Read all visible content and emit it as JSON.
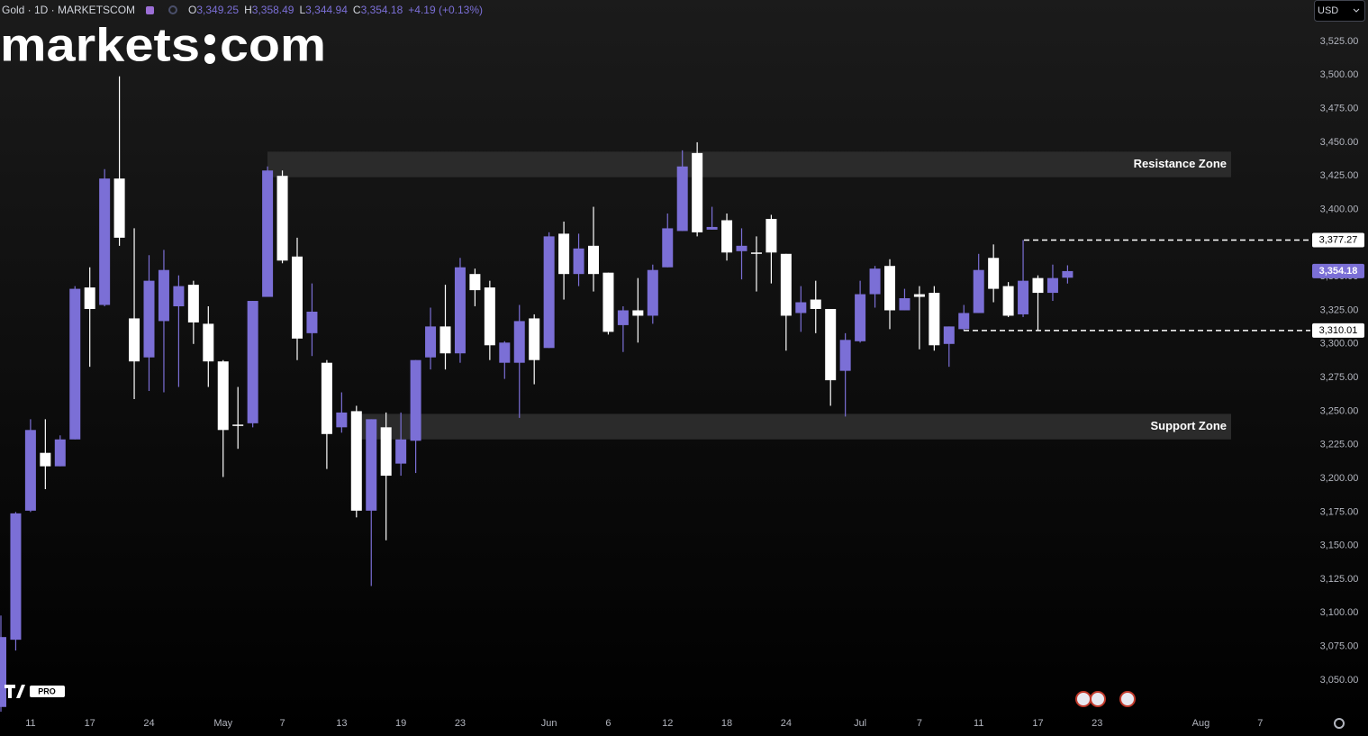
{
  "header": {
    "symbol": "Gold · 1D · MARKETSCOM",
    "ohlc": [
      {
        "label": "O",
        "value": "3,349.25"
      },
      {
        "label": "H",
        "value": "3,358.49"
      },
      {
        "label": "L",
        "value": "3,344.94"
      },
      {
        "label": "C",
        "value": "3,354.18"
      }
    ],
    "change": "+4.19 (+0.13%)",
    "currency": "USD"
  },
  "logo": {
    "left": "markets",
    "right": "com"
  },
  "badge": "PRO",
  "chart_data": {
    "type": "candlestick",
    "categories": [
      null,
      null,
      "11",
      null,
      null,
      null,
      "17",
      null,
      null,
      null,
      "24",
      null,
      null,
      null,
      null,
      "May",
      null,
      null,
      null,
      "7",
      null,
      null,
      null,
      "13",
      null,
      null,
      null,
      "19",
      null,
      null,
      null,
      "23",
      null,
      null,
      null,
      null,
      null,
      "Jun",
      null,
      null,
      null,
      "6",
      null,
      null,
      null,
      "12",
      null,
      null,
      null,
      "18",
      null,
      null,
      null,
      "24",
      null,
      null,
      null,
      null,
      "Jul",
      null,
      null,
      null,
      "7",
      null,
      null,
      null,
      "11",
      null,
      null,
      null,
      "17",
      null,
      null,
      null,
      "23",
      null,
      null,
      null,
      null,
      null,
      null,
      "Aug",
      null,
      null,
      null,
      "7"
    ],
    "open": [
      3030,
      3080,
      3176,
      3219,
      3209,
      3229,
      3342,
      3329,
      3423,
      3319,
      3290,
      3317,
      3328,
      3344,
      3315,
      3287,
      3240,
      3241,
      3335,
      3425,
      3365,
      3308,
      3286,
      3238,
      3250,
      3176,
      3238,
      3211,
      3228,
      3290,
      3313,
      3293,
      3352,
      3342,
      3286,
      3286,
      3319,
      3297,
      3382,
      3352,
      3373,
      3353,
      3314,
      3325,
      3321,
      3357,
      3384,
      3442,
      3385,
      3392,
      3369,
      3368,
      3393,
      3367,
      3323,
      3333,
      3326,
      3280,
      3302,
      3337,
      3358,
      3325,
      3337,
      3338,
      3300,
      3311,
      3323,
      3364,
      3343,
      3322,
      3349,
      3338,
      3349.25,
      null,
      null,
      null,
      null,
      null,
      null,
      null,
      null,
      null,
      null,
      null,
      null,
      null
    ],
    "high": [
      3098,
      3175,
      3244,
      3244,
      3232,
      3343,
      3357,
      3430,
      3499,
      3386,
      3366,
      3370,
      3351,
      3347,
      3328,
      3288,
      3268,
      3332,
      3432,
      3429,
      3379,
      3345,
      3288,
      3264,
      3254,
      3244,
      3249,
      3249,
      3288,
      3327,
      3344,
      3364,
      3356,
      3347,
      3302,
      3329,
      3322,
      3383,
      3391,
      3382,
      3402,
      3353,
      3328,
      3349,
      3359,
      3397,
      3444,
      3450,
      3402,
      3397,
      3386,
      3380,
      3396,
      3367,
      3343,
      3347,
      3326,
      3308,
      3347,
      3358,
      3363,
      3341,
      3343,
      3343,
      3313,
      3329,
      3367,
      3374,
      3346,
      3377.27,
      3351,
      3359,
      3358.49,
      null,
      null,
      null,
      null,
      null,
      null,
      null,
      null,
      null,
      null,
      null,
      null,
      null
    ],
    "low": [
      3025,
      3072,
      3175,
      3192,
      3209,
      3229,
      3283,
      3328,
      3373,
      3259,
      3265,
      3264,
      3268,
      3300,
      3268,
      3201,
      3222,
      3238,
      3335,
      3360,
      3288,
      3291,
      3207,
      3234,
      3171,
      3120,
      3154,
      3202,
      3204,
      3281,
      3281,
      3286,
      3328,
      3288,
      3274,
      3245,
      3270,
      3297,
      3333,
      3343,
      3339,
      3307,
      3294,
      3301,
      3315,
      3357,
      3384,
      3380,
      3385,
      3362,
      3348,
      3339,
      3345,
      3295,
      3309,
      3308,
      3254,
      3246,
      3301,
      3327,
      3311,
      3325,
      3296,
      3295,
      3283,
      3310.01,
      3323,
      3331,
      3320,
      3320,
      3310,
      3332,
      3344.94,
      null,
      null,
      null,
      null,
      null,
      null,
      null,
      null,
      null,
      null,
      null,
      null,
      null
    ],
    "close": [
      3082,
      3174,
      3236,
      3209,
      3229,
      3341,
      3326,
      3423,
      3379,
      3287,
      3347,
      3355,
      3343,
      3316,
      3287,
      3236,
      3239,
      3332,
      3429,
      3362,
      3304,
      3324,
      3233,
      3249,
      3176,
      3244,
      3202,
      3229,
      3288,
      3313,
      3293,
      3357,
      3340,
      3299,
      3301,
      3317,
      3288,
      3380,
      3352,
      3371,
      3352,
      3309,
      3325,
      3321,
      3355,
      3386,
      3432,
      3383,
      3387,
      3368,
      3373,
      3367,
      3368,
      3321,
      3331,
      3326,
      3273,
      3303,
      3337,
      3356,
      3325,
      3334,
      3335,
      3299,
      3313,
      3323,
      3355,
      3341,
      3321,
      3347,
      3338,
      3349,
      3354.18,
      null,
      null,
      null,
      null,
      null,
      null,
      null,
      null,
      null,
      null,
      null,
      null,
      null
    ],
    "up_color": "#7b6fd6",
    "down_color": "#ffffff",
    "ylim": [
      3026.5,
      3555.8
    ],
    "yticks": [
      {
        "value": 3050,
        "label": "3,050.00"
      },
      {
        "value": 3075,
        "label": "3,075.00"
      },
      {
        "value": 3100,
        "label": "3,100.00"
      },
      {
        "value": 3125,
        "label": "3,125.00"
      },
      {
        "value": 3150,
        "label": "3,150.00"
      },
      {
        "value": 3175,
        "label": "3,175.00"
      },
      {
        "value": 3200,
        "label": "3,200.00"
      },
      {
        "value": 3225,
        "label": "3,225.00"
      },
      {
        "value": 3250,
        "label": "3,250.00"
      },
      {
        "value": 3275,
        "label": "3,275.00"
      },
      {
        "value": 3300,
        "label": "3,300.00"
      },
      {
        "value": 3325,
        "label": "3,325.00"
      },
      {
        "value": 3350,
        "label": "3,350.00"
      },
      {
        "value": 3375,
        "label": "3,375.00"
      },
      {
        "value": 3400,
        "label": "3,400.00"
      },
      {
        "value": 3425,
        "label": "3,425.00"
      },
      {
        "value": 3450,
        "label": "3,450.00"
      },
      {
        "value": 3475,
        "label": "3,475.00"
      },
      {
        "value": 3500,
        "label": "3,500.00"
      },
      {
        "value": 3525,
        "label": "3,525.00"
      }
    ],
    "zones": [
      {
        "label": "Resistance Zone",
        "range": [
          3424,
          3443
        ]
      },
      {
        "label": "Support Zone",
        "range": [
          3229,
          3248
        ]
      }
    ],
    "price_lines": [
      {
        "value": 3377.27,
        "label": "3,377.27"
      },
      {
        "value": 3310.01,
        "label": "3,310.01"
      }
    ],
    "last_price": {
      "value": 3354.18,
      "label": "3,354.18"
    }
  }
}
